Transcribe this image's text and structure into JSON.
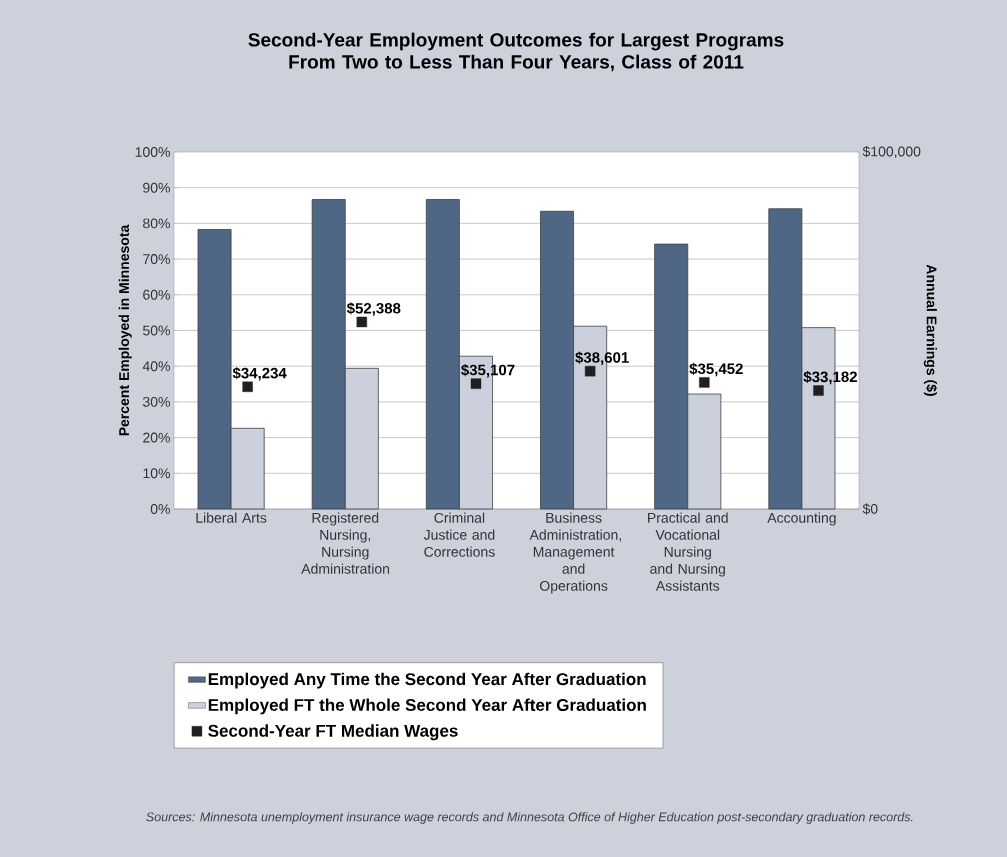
{
  "chart_data": {
    "type": "bar",
    "title": "Second-Year Employment Outcomes for Largest Programs From Two to Less Than Four Years, Class of 2011",
    "categories": [
      "Liberal Arts",
      "Registered Nursing, Nursing Administration",
      "Criminal Justice and Corrections",
      "Business Administration, Management and Operations",
      "Practical and Vocational Nursing and Nursing Assistants",
      "Accounting"
    ],
    "series": [
      {
        "name": "Employed Any Time the Second Year After Graduation",
        "color": "#4f6785",
        "values": [
          78.3,
          86.7,
          86.7,
          83.4,
          74.2,
          84.1
        ]
      },
      {
        "name": "Employed  FT the Whole Second Year After Graduation",
        "color": "#cbd0dc",
        "values": [
          22.6,
          39.4,
          42.8,
          51.2,
          32.2,
          50.8
        ]
      },
      {
        "name": "Second-Year FT Median Wages",
        "type": "scatter",
        "axis": "y2",
        "marker": "square",
        "color": "#231f20",
        "values": [
          34234,
          52388,
          35107,
          38601,
          35452,
          33182
        ],
        "value_labels": [
          "$34,234",
          "$52,388",
          "$35,107",
          "$38,601",
          "$35,452",
          "$33,182"
        ]
      }
    ],
    "ylabel": "Percent Employed in Minnesota",
    "y2label": "Annual Earnings ($)",
    "ylim": [
      0,
      100
    ],
    "yticks": [
      {
        "value": 0,
        "label": "0%"
      },
      {
        "value": 10,
        "label": "10%"
      },
      {
        "value": 20,
        "label": "20%"
      },
      {
        "value": 30,
        "label": "30%"
      },
      {
        "value": 40,
        "label": "40%"
      },
      {
        "value": 50,
        "label": "50%"
      },
      {
        "value": 60,
        "label": "60%"
      },
      {
        "value": 70,
        "label": "70%"
      },
      {
        "value": 80,
        "label": "80%"
      },
      {
        "value": 90,
        "label": "90%"
      },
      {
        "value": 100,
        "label": "100%"
      }
    ],
    "y2lim": [
      0,
      100000
    ],
    "y2ticks": [
      {
        "value": 0,
        "label": "$0"
      },
      {
        "value": 100000,
        "label": "$100,000"
      }
    ],
    "grid": "y",
    "legend": "bottom",
    "annotations": [
      "Sources: Minnesota unemployment insurance wage records and Minnesota Office of Higher Education post-secondary graduation records."
    ]
  }
}
